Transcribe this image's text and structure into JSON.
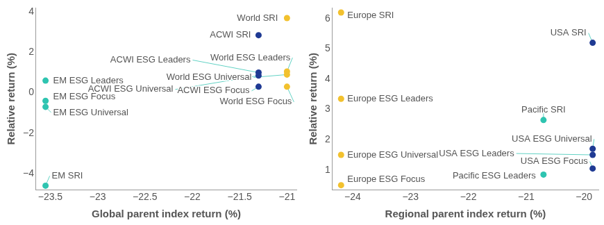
{
  "chart_data": [
    {
      "type": "scatter",
      "x_label": "Global parent index return (%)",
      "y_label": "Relative return (%)",
      "labels": [
        "World SRI",
        "ACWI SRI",
        "World ESG Leaders",
        "ACWI ESG Leaders",
        "World ESG Universal",
        "ACWI ESG Universal",
        "World ESG Focus",
        "ACWI ESG Focus",
        "EM ESG Leaders",
        "EM ESG Focus",
        "EM ESG Universal",
        "EM SRI"
      ],
      "x": [
        -21.0,
        -21.3,
        -21.0,
        -21.3,
        -21.0,
        -21.3,
        -21.0,
        -21.3,
        -23.55,
        -23.55,
        -23.55,
        -23.55
      ],
      "values": [
        3.7,
        2.85,
        1.05,
        1.0,
        0.9,
        0.85,
        0.3,
        0.3,
        0.6,
        -0.4,
        -0.7,
        -4.6
      ],
      "colors": [
        "#f2c12e",
        "#1f3a93",
        "#f2c12e",
        "#1f3a93",
        "#f2c12e",
        "#1f3a93",
        "#f2c12e",
        "#1f3a93",
        "#2ec4b0",
        "#2ec4b0",
        "#2ec4b0",
        "#2ec4b0"
      ],
      "marker": "circle",
      "xlim": [
        -23.65,
        -20.9
      ],
      "xticks": [
        {
          "value": -23.5,
          "label": "−23.5"
        },
        {
          "value": -23,
          "label": "−23"
        },
        {
          "value": -22.5,
          "label": "−22.5"
        },
        {
          "value": -22,
          "label": "−22"
        },
        {
          "value": -21.5,
          "label": "−21.5"
        },
        {
          "value": -21,
          "label": "−21"
        }
      ],
      "ylim": [
        -4.8,
        4.2
      ],
      "yticks": [
        {
          "value": -4,
          "label": "−4"
        },
        {
          "value": -2,
          "label": "−2"
        },
        0,
        2,
        4
      ],
      "grid": false
    },
    {
      "type": "scatter",
      "x_label": "Regional parent index return (%)",
      "y_label": "Relative return (%)",
      "labels": [
        "Europe SRI",
        "USA SRI",
        "Europe ESG Leaders",
        "Pacific SRI",
        "USA ESG Universal",
        "USA ESG Leaders",
        "Europe ESG Universal",
        "USA ESG Focus",
        "Pacific ESG Leaders",
        "Europe ESG Focus"
      ],
      "x": [
        -24.2,
        -19.85,
        -24.2,
        -20.7,
        -19.85,
        -19.85,
        -24.2,
        -19.85,
        -20.7,
        -24.2
      ],
      "values": [
        6.2,
        5.2,
        3.35,
        2.65,
        1.7,
        1.5,
        1.5,
        1.05,
        0.85,
        0.5
      ],
      "colors": [
        "#f2c12e",
        "#1f3a93",
        "#f2c12e",
        "#2ec4b0",
        "#1f3a93",
        "#1f3a93",
        "#f2c12e",
        "#1f3a93",
        "#2ec4b0",
        "#f2c12e"
      ],
      "marker": "circle",
      "xlim": [
        -24.35,
        -19.75
      ],
      "xticks": [
        {
          "value": -24,
          "label": "−24"
        },
        {
          "value": -23,
          "label": "−23"
        },
        {
          "value": -22,
          "label": "−22"
        },
        {
          "value": -21,
          "label": "−21"
        },
        {
          "value": -20,
          "label": "−20"
        }
      ],
      "ylim": [
        0.35,
        6.35
      ],
      "yticks": [
        1,
        2,
        3,
        4,
        5,
        6
      ],
      "grid": false
    }
  ]
}
